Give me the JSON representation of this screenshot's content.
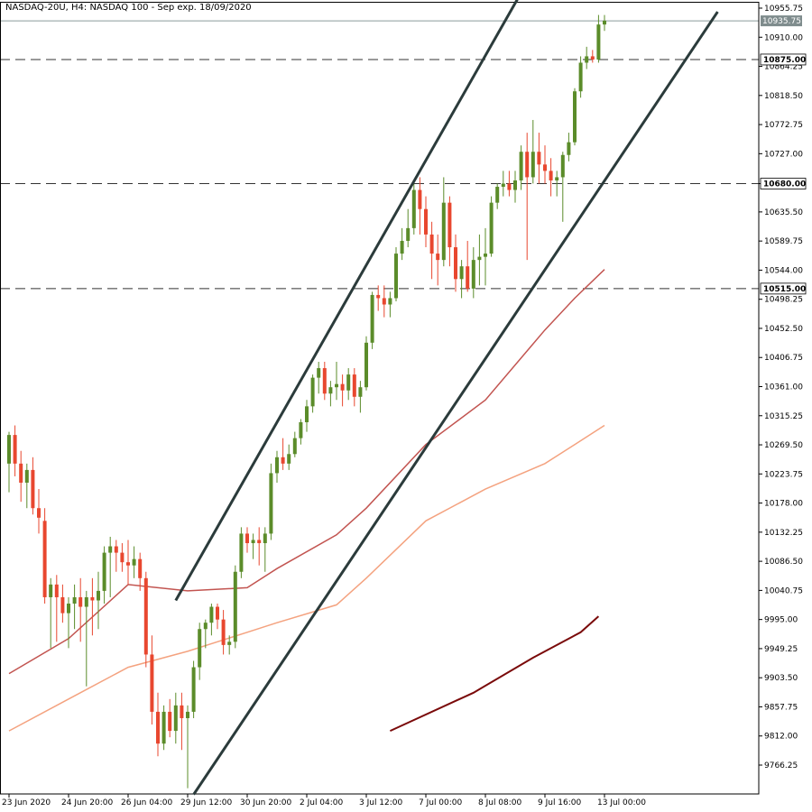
{
  "chart_data": {
    "type": "candlestick",
    "title": "NASDAQ-20U, H4:  NASDAQ 100 - Sep exp. 18/09/2020",
    "colors": {
      "up": "#5b8c2a",
      "down": "#e8472f",
      "channel": "#2b3b3b",
      "hline": "#333333",
      "ma_slow": "#c25450",
      "ma_medium": "#f4a27f",
      "ma_long": "#7a0a0a",
      "current_price_bg": "#7f8c8d"
    },
    "y_range": [
      9720,
      10960
    ],
    "y_ticks": [
      "10955.75",
      "10910.00",
      "10864.25",
      "10818.50",
      "10772.75",
      "10727.00",
      "10680.00",
      "10635.50",
      "10589.75",
      "10544.00",
      "10498.25",
      "10452.50",
      "10406.75",
      "10361.00",
      "10315.25",
      "10269.50",
      "10223.75",
      "10178.00",
      "10132.25",
      "10086.50",
      "10040.75",
      "9995.00",
      "9949.25",
      "9903.50",
      "9857.75",
      "9812.00",
      "9766.25"
    ],
    "x_labels": [
      {
        "bar": 0,
        "label": "23 Jun 2020"
      },
      {
        "bar": 10,
        "label": "24 Jun 20:00"
      },
      {
        "bar": 20,
        "label": "26 Jun 04:00"
      },
      {
        "bar": 30,
        "label": "29 Jun 12:00"
      },
      {
        "bar": 40,
        "label": "30 Jun 20:00"
      },
      {
        "bar": 50,
        "label": "2 Jul 04:00"
      },
      {
        "bar": 60,
        "label": "3 Jul 12:00"
      },
      {
        "bar": 70,
        "label": "7 Jul 00:00"
      },
      {
        "bar": 80,
        "label": "8 Jul 08:00"
      },
      {
        "bar": 90,
        "label": "9 Jul 16:00"
      },
      {
        "bar": 100,
        "label": "13 Jul 00:00"
      }
    ],
    "horizontal_levels": [
      {
        "price": 10875.0,
        "label": "10875.00"
      },
      {
        "price": 10680.0,
        "label": "10680.00"
      },
      {
        "price": 10515.0,
        "label": "10515.00"
      }
    ],
    "current_price": {
      "price": 10935.75,
      "label": "10935.75"
    },
    "candles": [
      [
        10240,
        10290,
        10195,
        10285
      ],
      [
        10285,
        10300,
        10220,
        10240
      ],
      [
        10240,
        10260,
        10180,
        10210
      ],
      [
        10210,
        10240,
        10170,
        10230
      ],
      [
        10230,
        10250,
        10160,
        10170
      ],
      [
        10170,
        10200,
        10130,
        10155
      ],
      [
        10150,
        10170,
        10020,
        10030
      ],
      [
        10030,
        10060,
        9950,
        10050
      ],
      [
        10050,
        10065,
        9960,
        10030
      ],
      [
        10030,
        10050,
        9990,
        10005
      ],
      [
        10005,
        10030,
        9950,
        10020
      ],
      [
        10020,
        10050,
        9980,
        10030
      ],
      [
        10030,
        10060,
        9960,
        10015
      ],
      [
        10015,
        10040,
        9890,
        10030
      ],
      [
        10030,
        10060,
        9970,
        10025
      ],
      [
        10025,
        10070,
        9980,
        10040
      ],
      [
        10040,
        10110,
        10020,
        10100
      ],
      [
        10100,
        10125,
        10030,
        10110
      ],
      [
        10110,
        10120,
        10070,
        10100
      ],
      [
        10100,
        10115,
        10070,
        10085
      ],
      [
        10085,
        10120,
        10050,
        10080
      ],
      [
        10080,
        10110,
        10060,
        10090
      ],
      [
        10090,
        10100,
        10040,
        10060
      ],
      [
        10060,
        10070,
        9920,
        9940
      ],
      [
        9940,
        9970,
        9830,
        9850
      ],
      [
        9850,
        9880,
        9780,
        9800
      ],
      [
        9800,
        9860,
        9790,
        9850
      ],
      [
        9850,
        9870,
        9810,
        9820
      ],
      [
        9820,
        9880,
        9800,
        9860
      ],
      [
        9860,
        9880,
        9790,
        9840
      ],
      [
        9840,
        9860,
        9730,
        9850
      ],
      [
        9850,
        9930,
        9840,
        9920
      ],
      [
        9920,
        9990,
        9900,
        9980
      ],
      [
        9980,
        9995,
        9950,
        9990
      ],
      [
        9990,
        10020,
        9970,
        10015
      ],
      [
        10015,
        10020,
        9980,
        9995
      ],
      [
        9995,
        10010,
        9940,
        9955
      ],
      [
        9955,
        9970,
        9940,
        9960
      ],
      [
        9960,
        10080,
        9950,
        10070
      ],
      [
        10070,
        10140,
        10060,
        10130
      ],
      [
        10130,
        10140,
        10100,
        10115
      ],
      [
        10115,
        10130,
        10090,
        10120
      ],
      [
        10120,
        10140,
        10080,
        10115
      ],
      [
        10115,
        10140,
        10070,
        10130
      ],
      [
        10130,
        10240,
        10120,
        10225
      ],
      [
        10225,
        10260,
        10210,
        10250
      ],
      [
        10250,
        10280,
        10230,
        10240
      ],
      [
        10240,
        10270,
        10230,
        10255
      ],
      [
        10255,
        10290,
        10250,
        10280
      ],
      [
        10280,
        10310,
        10270,
        10305
      ],
      [
        10305,
        10340,
        10290,
        10330
      ],
      [
        10330,
        10380,
        10320,
        10375
      ],
      [
        10375,
        10400,
        10350,
        10390
      ],
      [
        10390,
        10400,
        10340,
        10350
      ],
      [
        10350,
        10370,
        10330,
        10360
      ],
      [
        10360,
        10400,
        10340,
        10365
      ],
      [
        10365,
        10380,
        10330,
        10355
      ],
      [
        10355,
        10390,
        10340,
        10380
      ],
      [
        10380,
        10390,
        10330,
        10345
      ],
      [
        10345,
        10370,
        10320,
        10360
      ],
      [
        10360,
        10440,
        10355,
        10430
      ],
      [
        10430,
        10510,
        10420,
        10505
      ],
      [
        10505,
        10520,
        10480,
        10500
      ],
      [
        10500,
        10520,
        10470,
        10490
      ],
      [
        10490,
        10510,
        10470,
        10500
      ],
      [
        10500,
        10580,
        10495,
        10570
      ],
      [
        10570,
        10610,
        10560,
        10590
      ],
      [
        10590,
        10640,
        10580,
        10610
      ],
      [
        10610,
        10680,
        10600,
        10670
      ],
      [
        10670,
        10690,
        10600,
        10640
      ],
      [
        10640,
        10660,
        10580,
        10600
      ],
      [
        10600,
        10620,
        10530,
        10570
      ],
      [
        10570,
        10600,
        10520,
        10560
      ],
      [
        10560,
        10690,
        10550,
        10650
      ],
      [
        10650,
        10660,
        10550,
        10580
      ],
      [
        10580,
        10600,
        10510,
        10530
      ],
      [
        10530,
        10560,
        10500,
        10550
      ],
      [
        10550,
        10590,
        10510,
        10515
      ],
      [
        10515,
        10580,
        10500,
        10560
      ],
      [
        10560,
        10600,
        10520,
        10565
      ],
      [
        10565,
        10610,
        10520,
        10570
      ],
      [
        10570,
        10660,
        10565,
        10650
      ],
      [
        10650,
        10680,
        10640,
        10675
      ],
      [
        10675,
        10700,
        10660,
        10680
      ],
      [
        10680,
        10700,
        10660,
        10670
      ],
      [
        10670,
        10700,
        10650,
        10685
      ],
      [
        10685,
        10740,
        10670,
        10730
      ],
      [
        10730,
        10760,
        10560,
        10690
      ],
      [
        10690,
        10780,
        10680,
        10730
      ],
      [
        10730,
        10760,
        10680,
        10710
      ],
      [
        10710,
        10740,
        10680,
        10700
      ],
      [
        10700,
        10720,
        10660,
        10685
      ],
      [
        10685,
        10700,
        10660,
        10690
      ],
      [
        10690,
        10730,
        10620,
        10725
      ],
      [
        10725,
        10760,
        10715,
        10745
      ],
      [
        10745,
        10830,
        10740,
        10825
      ],
      [
        10825,
        10880,
        10815,
        10870
      ],
      [
        10870,
        10895,
        10860,
        10880
      ],
      [
        10880,
        10890,
        10870,
        10875
      ],
      [
        10875,
        10945,
        10870,
        10930
      ],
      [
        10930,
        10945,
        10920,
        10936
      ]
    ],
    "moving_averages": {
      "slow": [
        [
          0,
          9910
        ],
        [
          10,
          9965
        ],
        [
          20,
          10050
        ],
        [
          30,
          10040
        ],
        [
          40,
          10045
        ],
        [
          45,
          10075
        ],
        [
          55,
          10128
        ],
        [
          60,
          10170
        ],
        [
          70,
          10270
        ],
        [
          80,
          10340
        ],
        [
          90,
          10450
        ],
        [
          95,
          10500
        ],
        [
          100,
          10545
        ]
      ],
      "medium": [
        [
          0,
          9820
        ],
        [
          10,
          9870
        ],
        [
          20,
          9920
        ],
        [
          30,
          9945
        ],
        [
          40,
          9975
        ],
        [
          45,
          9990
        ],
        [
          55,
          10018
        ],
        [
          60,
          10060
        ],
        [
          70,
          10150
        ],
        [
          80,
          10200
        ],
        [
          90,
          10240
        ],
        [
          95,
          10270
        ],
        [
          100,
          10300
        ]
      ],
      "long": [
        [
          64,
          9820
        ],
        [
          78,
          9880
        ],
        [
          88,
          9935
        ],
        [
          96,
          9975
        ],
        [
          99,
          10000
        ]
      ]
    },
    "channel_lines": [
      {
        "from": [
          28,
          10025
        ],
        "to": [
          86,
          10980
        ]
      },
      {
        "from": [
          31,
          9720
        ],
        "to": [
          119,
          10950
        ]
      }
    ]
  }
}
